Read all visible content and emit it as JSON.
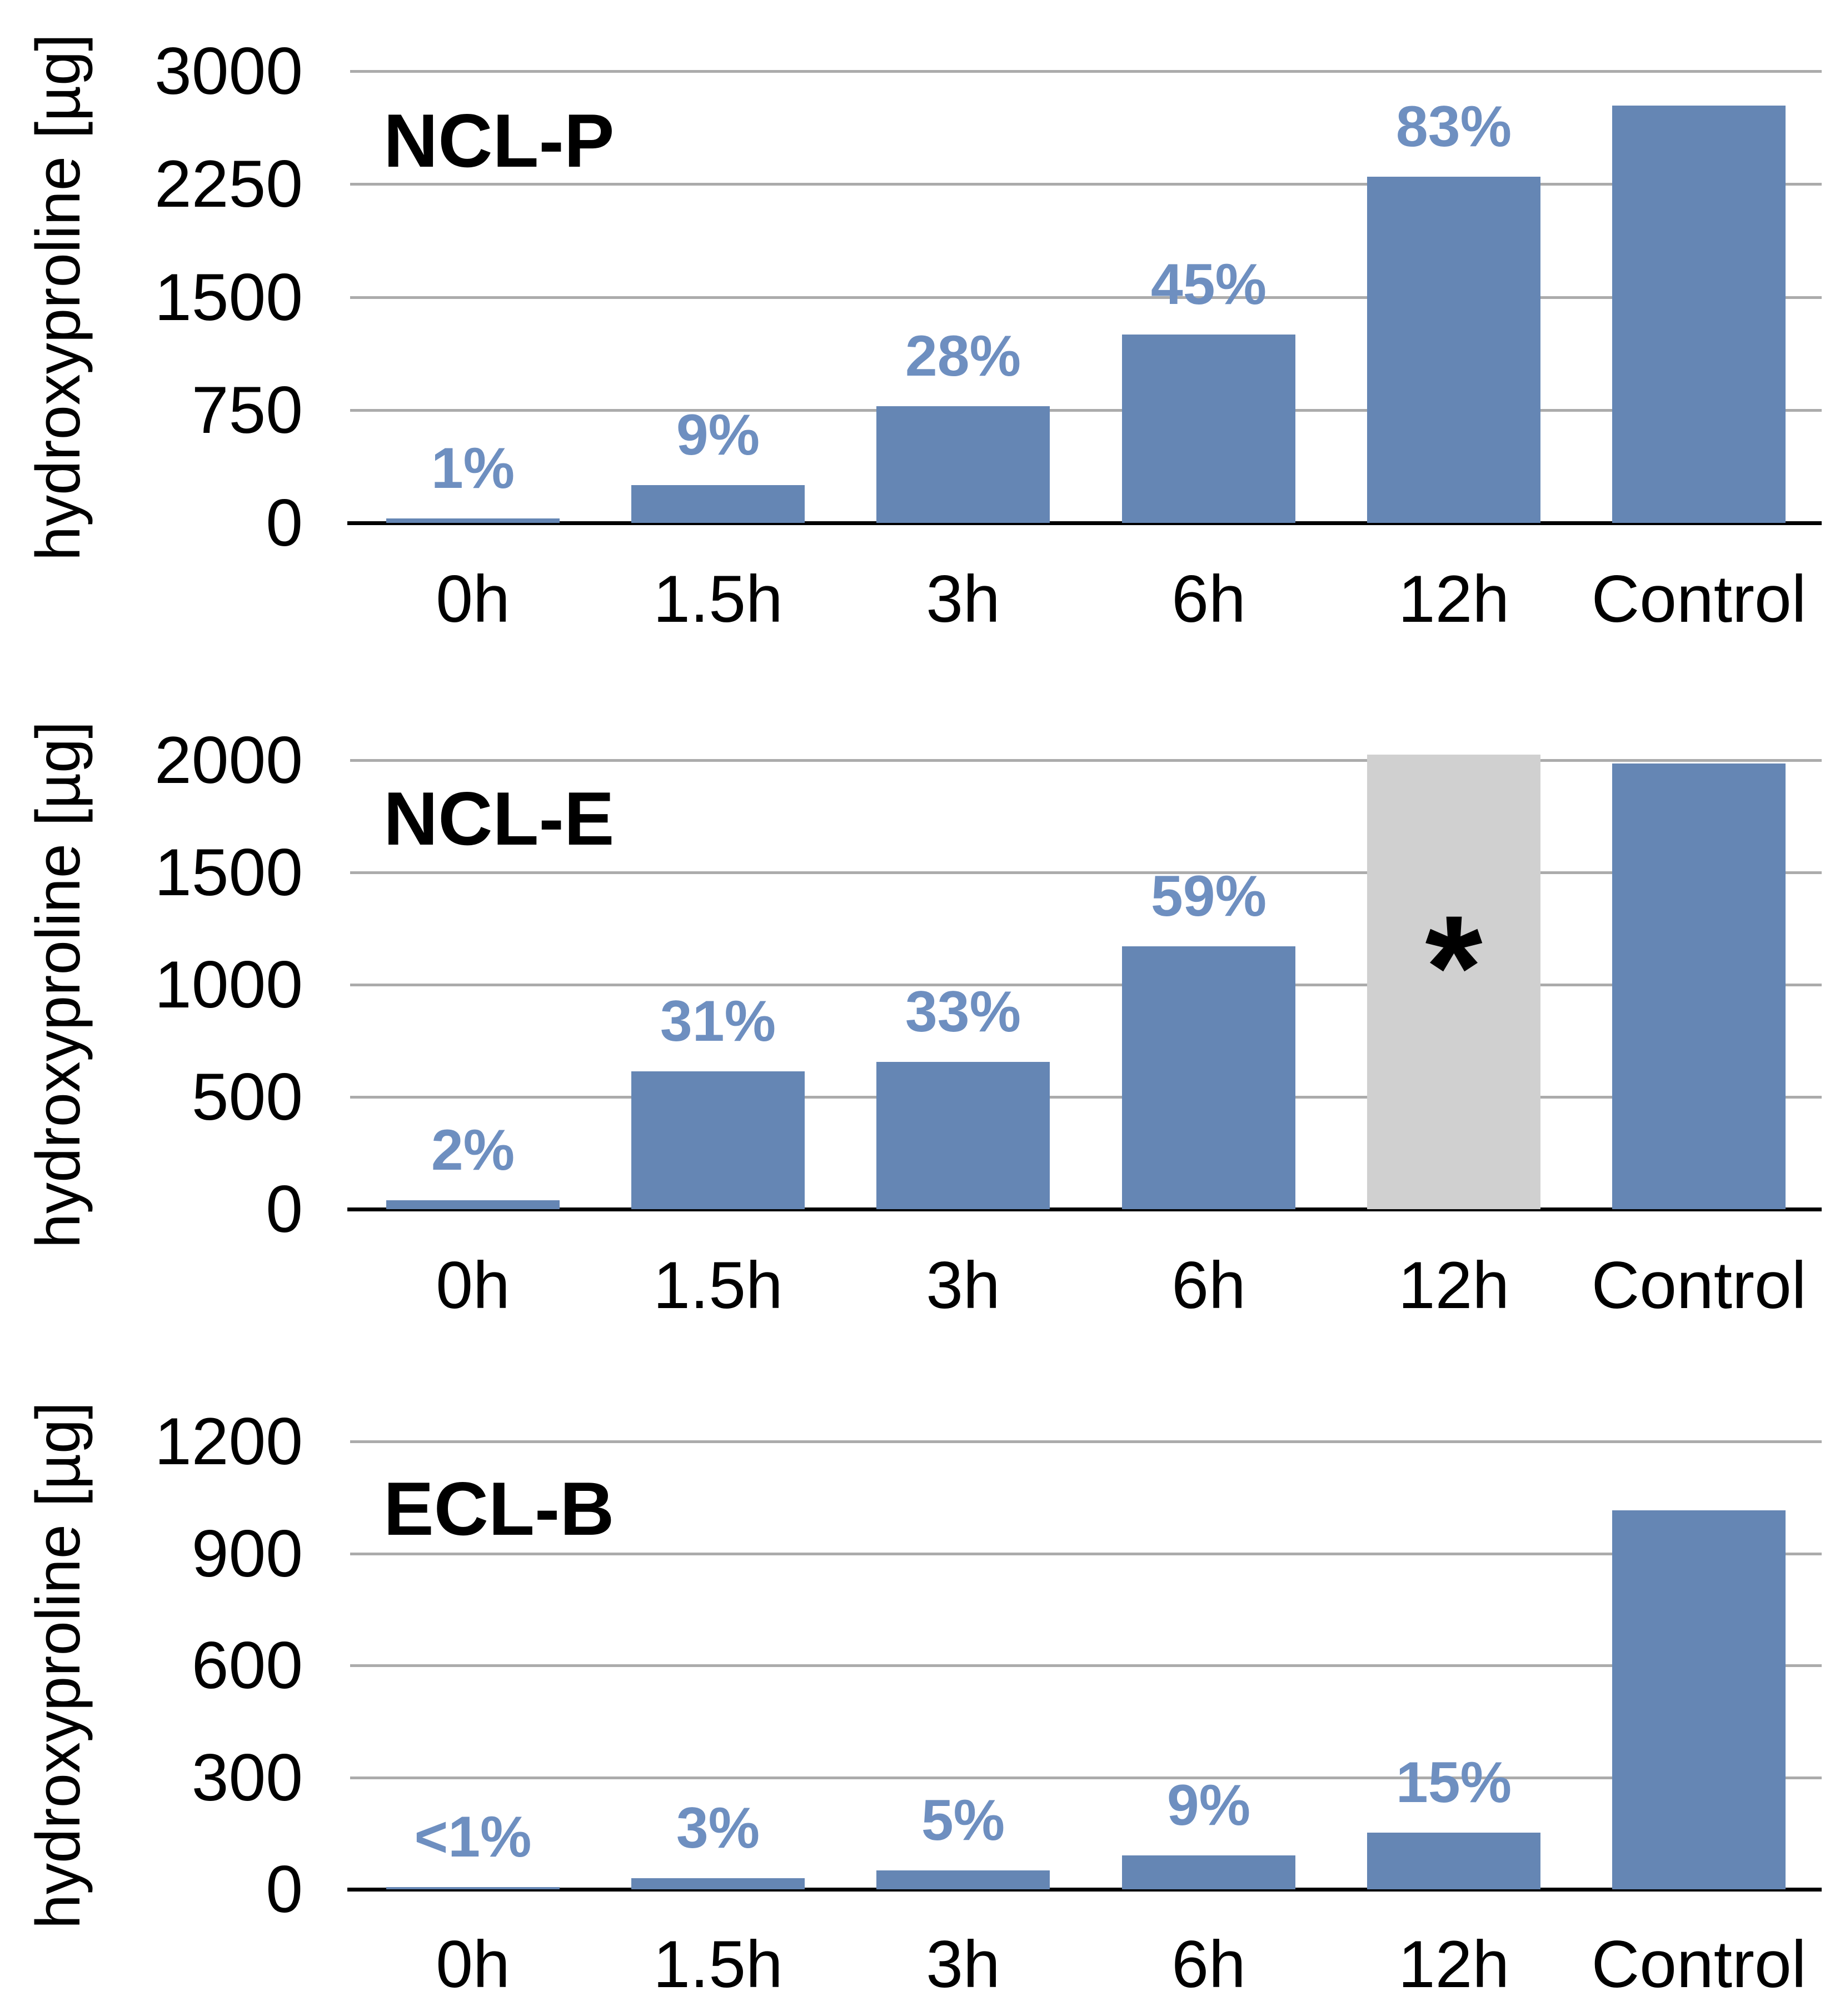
{
  "colors": {
    "bar_blue": "#6586B4",
    "percent_label_blue": "#6E8FC0",
    "inactivated_bar_gray": "#D0D0D0",
    "gridline_gray": "#ABABAB",
    "axis_black": "#000000",
    "text_black": "#000000",
    "background": "#FFFFFF"
  },
  "chart_data": [
    {
      "type": "bar",
      "title": "NCL-P",
      "ylabel": "hydroxyproline [µg]",
      "xlabel": "",
      "categories": [
        "0h",
        "1.5h",
        "3h",
        "6h",
        "12h",
        "Control"
      ],
      "values": [
        28,
        250,
        775,
        1250,
        2300,
        2770
      ],
      "bar_labels": [
        "1%",
        "9%",
        "28%",
        "45%",
        "83%",
        ""
      ],
      "ylim": [
        0,
        3000
      ],
      "yticks": [
        0,
        750,
        1500,
        2250,
        3000
      ],
      "ytick_labels": [
        "0",
        "750",
        "1500",
        "2250",
        "3000"
      ],
      "grid": true,
      "legend": null
    },
    {
      "type": "bar",
      "title": "NCL-E",
      "ylabel": "hydroxyproline [µg]",
      "xlabel": "",
      "categories": [
        "0h",
        "1.5h",
        "3h",
        "6h",
        "12h",
        "Control"
      ],
      "values": [
        40,
        615,
        655,
        1170,
        2025,
        1985
      ],
      "bar_labels": [
        "2%",
        "31%",
        "33%",
        "59%",
        "",
        ""
      ],
      "ylim": [
        0,
        2000
      ],
      "yticks": [
        0,
        500,
        1000,
        1500,
        2000
      ],
      "ytick_labels": [
        "0",
        "500",
        "1000",
        "1500",
        "2000"
      ],
      "grid": true,
      "legend": null,
      "highlight": {
        "index": 4,
        "category": "12h",
        "bar_color": "#D0D0D0",
        "symbol": "*",
        "symbol_y_value": 1150
      }
    },
    {
      "type": "bar",
      "title": "ECL-B",
      "ylabel": "hydroxyproline [µg]",
      "xlabel": "",
      "categories": [
        "0h",
        "1.5h",
        "3h",
        "6h",
        "12h",
        "Control"
      ],
      "values": [
        6,
        30,
        51,
        91,
        152,
        1015
      ],
      "bar_labels": [
        "<1%",
        "3%",
        "5%",
        "9%",
        "15%",
        ""
      ],
      "ylim": [
        0,
        1200
      ],
      "yticks": [
        0,
        300,
        600,
        900,
        1200
      ],
      "ytick_labels": [
        "0",
        "300",
        "600",
        "900",
        "1200"
      ],
      "grid": true,
      "legend": null
    }
  ]
}
